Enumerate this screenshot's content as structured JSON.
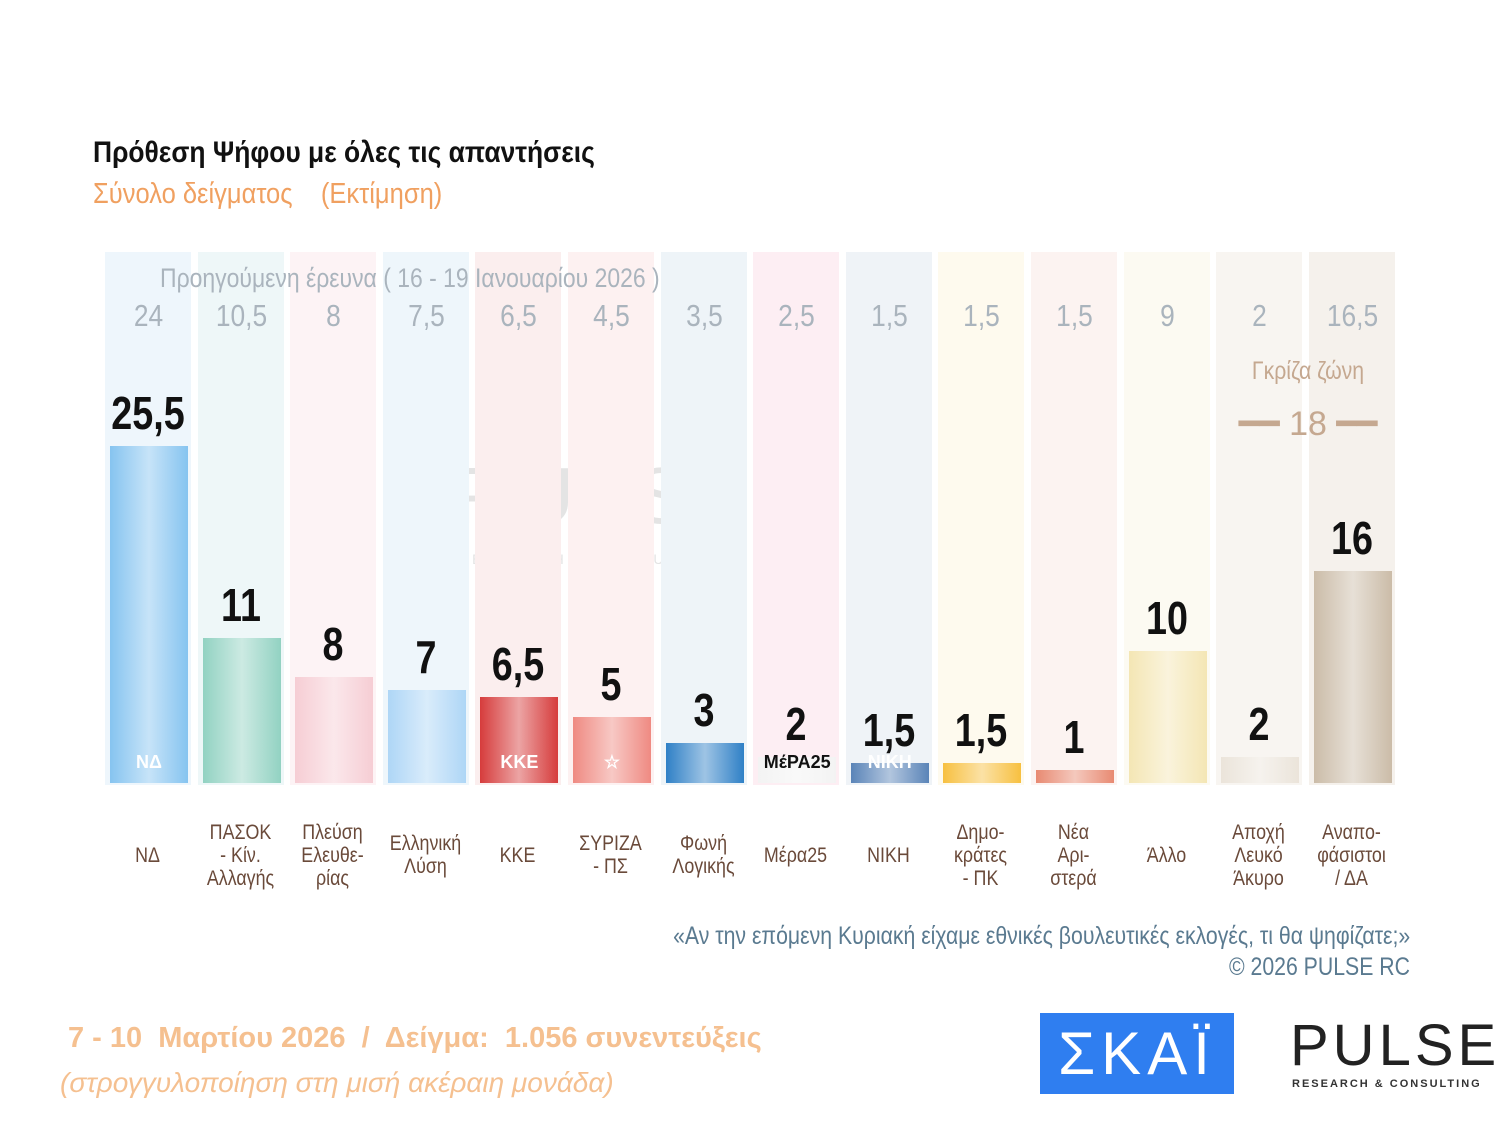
{
  "chart_data": {
    "type": "bar",
    "title": "Πρόθεση Ψήφου με όλες τις απαντήσεις",
    "subtitle": "Σύνολο δείγματος    (Εκτίμηση)",
    "previous_label": "Προηγούμενη έρευνα ( 16 - 19 Ιανουαρίου 2026 )",
    "categories": [
      "ΝΔ",
      "ΠΑΣΟΚ\n- Κίν.\nΑλλαγής",
      "Πλεύση\nΕλευθε-\nρίας",
      "Ελληνική\nΛύση",
      "ΚΚΕ",
      "ΣΥΡΙΖΑ\n- ΠΣ",
      "Φωνή\nΛογικής",
      "Μέρα25",
      "ΝΙΚΗ",
      "Δημο-\nκράτες\n- ΠΚ",
      "Νέα\nΑρι-\nστερά",
      "Άλλο",
      "Αποχή\nΛευκό\nΆκυρο",
      "Αναπο-\nφάσιστοι\n/ ΔΑ"
    ],
    "values": [
      25.5,
      11,
      8,
      7,
      6.5,
      5,
      3,
      2,
      1.5,
      1.5,
      1,
      10,
      2,
      16
    ],
    "value_labels": [
      "25,5",
      "11",
      "8",
      "7",
      "6,5",
      "5",
      "3",
      "2",
      "1,5",
      "1,5",
      "1",
      "10",
      "2",
      "16"
    ],
    "previous_values": [
      24,
      10.5,
      8,
      7.5,
      6.5,
      4.5,
      3.5,
      2.5,
      1.5,
      1.5,
      1.5,
      9,
      2,
      16.5
    ],
    "previous_labels": [
      "24",
      "10,5",
      "8",
      "7,5",
      "6,5",
      "4,5",
      "3,5",
      "2,5",
      "1,5",
      "1,5",
      "1,5",
      "9",
      "2",
      "16,5"
    ],
    "bar_colors": [
      "#86c4f0",
      "#92d2c2",
      "#f6cdd4",
      "#aed6f6",
      "#d63c3c",
      "#ef8a82",
      "#2f80c6",
      "#f3f3f3",
      "#5a84b8",
      "#f7c040",
      "#e88a72",
      "#f4e6b4",
      "#ebe4da",
      "#cbbca8"
    ],
    "band_colors": [
      "#eef6fc",
      "#eef7f8",
      "#fdf3f5",
      "#eef6fb",
      "#fbeeee",
      "#fdf1f1",
      "#eef4f8",
      "#fdeef3",
      "#eff3f7",
      "#fefaee",
      "#fcf3f1",
      "#fcfaf2",
      "#f8f5f1",
      "#f5f1ec"
    ],
    "party_logos": [
      "ΝΔ",
      "",
      "",
      "",
      "ΚΚΕ",
      "☆",
      "",
      "ΜέΡΑ25",
      "ΝΙΚΗ",
      "",
      "",
      "",
      "",
      ""
    ],
    "ylim": [
      0,
      30
    ],
    "grey_zone": {
      "label": "Γκρίζα ζώνη",
      "value": "━━ 18 ━━"
    }
  },
  "footer": {
    "question": "«Αν την επόμενη Κυριακή είχαμε εθνικές βουλευτικές εκλογές, τι θα ψηφίζατε;»",
    "copyright": "©  2026  PULSE RC",
    "date_sample": "7 - 10  Μαρτίου 2026  /  Δείγμα:  1.056 συνεντεύξεις",
    "rounding": "(στρογγυλοποίηση στη μισή ακέραιη μονάδα)"
  },
  "logos": {
    "skai": "ΣΚΑΪ",
    "pulse": "PULSE",
    "pulse_sub": "RESEARCH & CONSULTING"
  }
}
